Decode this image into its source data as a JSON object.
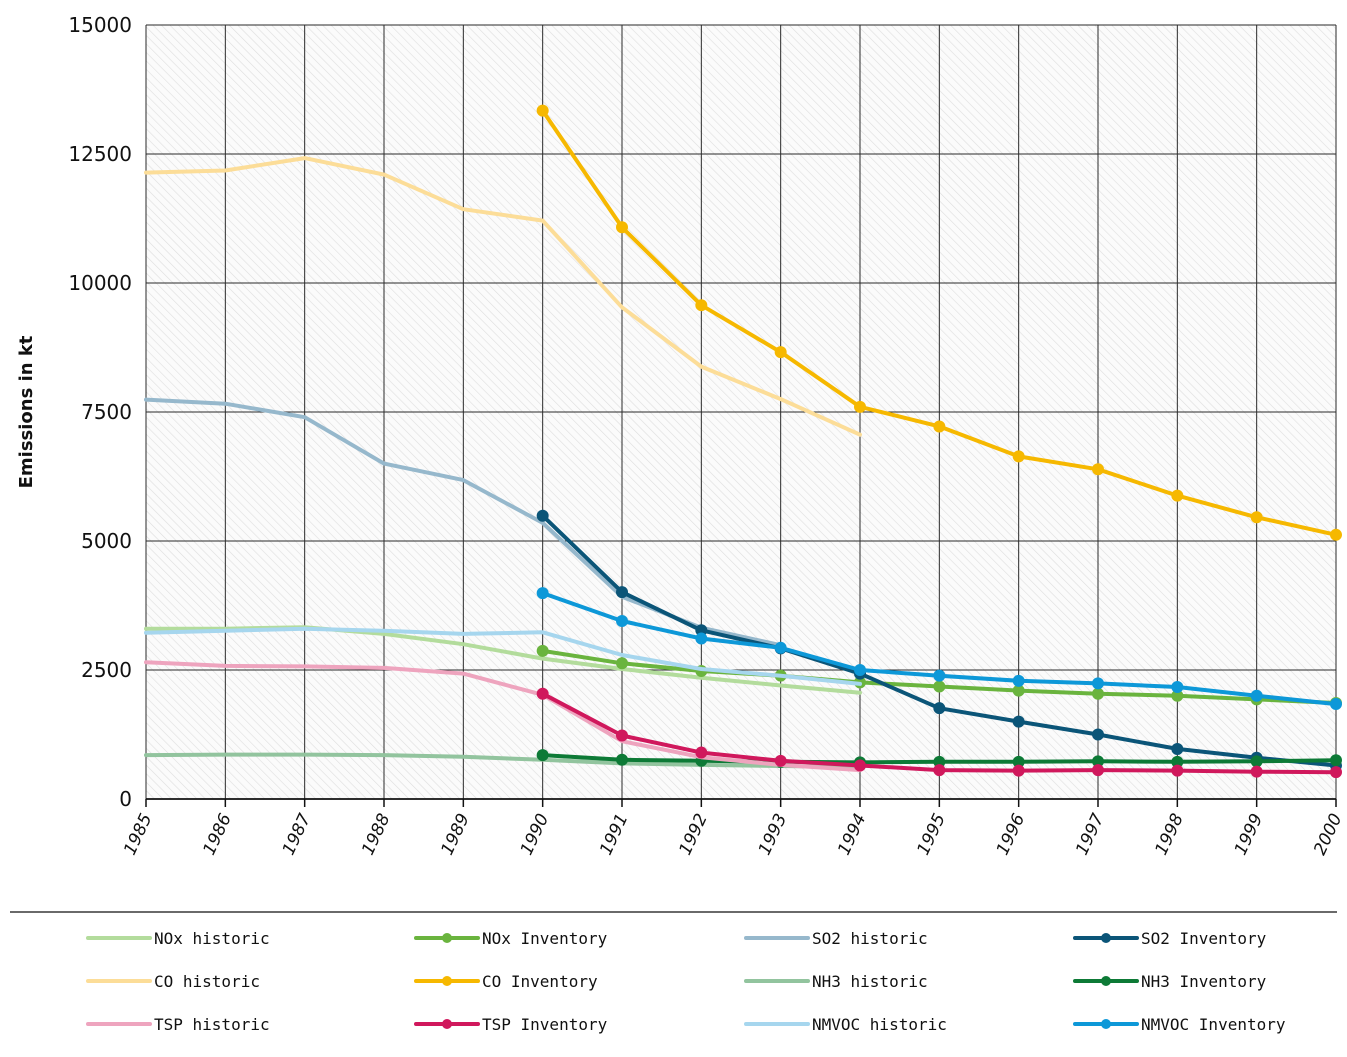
{
  "chart_data": {
    "type": "line",
    "title": "",
    "xlabel": "",
    "ylabel": "Emissions in kt",
    "xlim": [
      1985,
      2000
    ],
    "ylim": [
      0,
      15000
    ],
    "x_ticks": [
      "1985",
      "1986",
      "1987",
      "1988",
      "1989",
      "1990",
      "1991",
      "1992",
      "1993",
      "1994",
      "1995",
      "1996",
      "1997",
      "1998",
      "1999",
      "2000"
    ],
    "y_ticks": [
      "0",
      "2500",
      "5000",
      "7500",
      "10000",
      "12500",
      "15000"
    ],
    "grid": true,
    "legend_position": "bottom",
    "series": [
      {
        "name": "NOx historic",
        "color": "#b3dc9c",
        "markers": false,
        "x": [
          1985,
          1986,
          1987,
          1988,
          1989,
          1990,
          1991,
          1992,
          1993,
          1994
        ],
        "y": [
          3300,
          3300,
          3330,
          3200,
          3000,
          2720,
          2520,
          2350,
          2200,
          2060
        ]
      },
      {
        "name": "NOx Inventory",
        "color": "#6ab43e",
        "markers": true,
        "x": [
          1990,
          1991,
          1992,
          1993,
          1994,
          1995,
          1996,
          1997,
          1998,
          1999,
          2000
        ],
        "y": [
          2870,
          2630,
          2480,
          2390,
          2260,
          2180,
          2100,
          2040,
          2000,
          1930,
          1860
        ]
      },
      {
        "name": "SO2 historic",
        "color": "#96b8cc",
        "markers": false,
        "x": [
          1985,
          1986,
          1987,
          1988,
          1989,
          1990,
          1991,
          1992,
          1993
        ],
        "y": [
          7740,
          7660,
          7400,
          6500,
          6180,
          5350,
          3920,
          3320,
          2980
        ]
      },
      {
        "name": "SO2 Inventory",
        "color": "#0b5578",
        "markers": true,
        "x": [
          1990,
          1991,
          1992,
          1993,
          1994,
          1995,
          1996,
          1997,
          1998,
          1999,
          2000
        ],
        "y": [
          5490,
          4010,
          3270,
          2920,
          2430,
          1760,
          1500,
          1250,
          970,
          800,
          650
        ]
      },
      {
        "name": "CO historic",
        "color": "#fcdd98",
        "markers": false,
        "x": [
          1985,
          1986,
          1987,
          1988,
          1989,
          1990,
          1991,
          1992,
          1993,
          1994
        ],
        "y": [
          12140,
          12180,
          12420,
          12100,
          11430,
          11210,
          9530,
          8380,
          7750,
          7060
        ]
      },
      {
        "name": "CO Inventory",
        "color": "#f6b800",
        "markers": true,
        "x": [
          1990,
          1991,
          1992,
          1993,
          1994,
          1995,
          1996,
          1997,
          1998,
          1999,
          2000
        ],
        "y": [
          13340,
          11080,
          9570,
          8660,
          7600,
          7220,
          6640,
          6390,
          5880,
          5460,
          5120
        ]
      },
      {
        "name": "NH3 historic",
        "color": "#92c49e",
        "markers": false,
        "x": [
          1985,
          1986,
          1987,
          1988,
          1989,
          1990,
          1991,
          1992,
          1993,
          1994
        ],
        "y": [
          850,
          860,
          860,
          850,
          820,
          760,
          690,
          660,
          640,
          620
        ]
      },
      {
        "name": "NH3 Inventory",
        "color": "#0d7a36",
        "markers": true,
        "x": [
          1990,
          1991,
          1992,
          1993,
          1994,
          1995,
          1996,
          1997,
          1998,
          1999,
          2000
        ],
        "y": [
          850,
          760,
          740,
          720,
          710,
          720,
          720,
          730,
          720,
          730,
          750
        ]
      },
      {
        "name": "TSP historic",
        "color": "#eea4be",
        "markers": false,
        "x": [
          1985,
          1986,
          1987,
          1988,
          1989,
          1990,
          1991,
          1992,
          1993,
          1994
        ],
        "y": [
          2650,
          2580,
          2570,
          2540,
          2430,
          2020,
          1120,
          810,
          660,
          560
        ]
      },
      {
        "name": "TSP Inventory",
        "color": "#d0185c",
        "markers": true,
        "x": [
          1990,
          1991,
          1992,
          1993,
          1994,
          1995,
          1996,
          1997,
          1998,
          1999,
          2000
        ],
        "y": [
          2040,
          1230,
          900,
          740,
          650,
          560,
          550,
          560,
          550,
          530,
          520
        ]
      },
      {
        "name": "NMVOC historic",
        "color": "#a6d6ee",
        "markers": false,
        "x": [
          1985,
          1986,
          1987,
          1988,
          1989,
          1990,
          1991,
          1992,
          1993,
          1994
        ],
        "y": [
          3220,
          3260,
          3300,
          3260,
          3200,
          3230,
          2790,
          2520,
          2390,
          2230
        ]
      },
      {
        "name": "NMVOC Inventory",
        "color": "#0d98d8",
        "markers": true,
        "x": [
          1990,
          1991,
          1992,
          1993,
          1994,
          1995,
          1996,
          1997,
          1998,
          1999,
          2000
        ],
        "y": [
          3990,
          3450,
          3110,
          2930,
          2500,
          2390,
          2290,
          2240,
          2170,
          2000,
          1840
        ]
      }
    ]
  }
}
